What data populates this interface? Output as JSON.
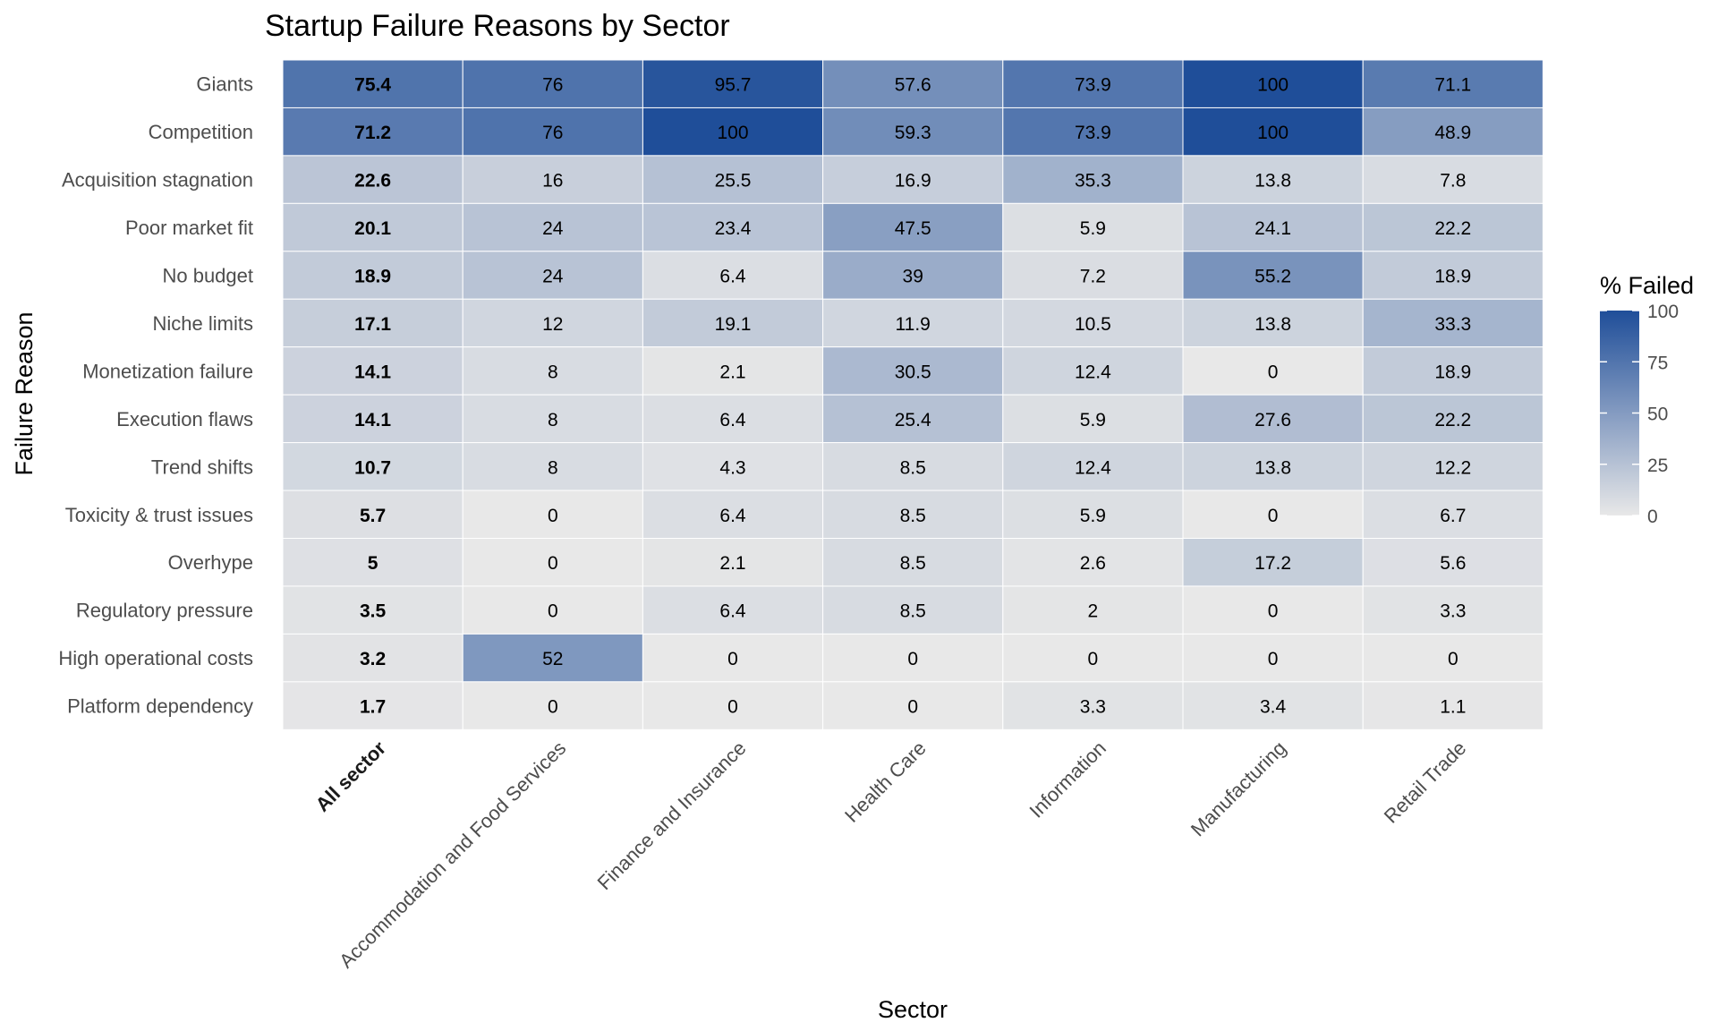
{
  "chart_data": {
    "type": "heatmap",
    "title": "Startup Failure Reasons by Sector",
    "xlabel": "Sector",
    "ylabel": "Failure Reason",
    "legend_title": "% Failed",
    "legend_ticks": [
      0,
      25,
      50,
      75,
      100
    ],
    "color_range": [
      0,
      100
    ],
    "color_low": "#e8e8e8",
    "color_high": "#1f4e99",
    "bold_column": "All sector",
    "x_categories": [
      "All sector",
      "Accommodation and Food Services",
      "Finance and Insurance",
      "Health Care",
      "Information",
      "Manufacturing",
      "Retail Trade"
    ],
    "y_categories": [
      "Giants",
      "Competition",
      "Acquisition stagnation",
      "Poor market fit",
      "No budget",
      "Niche limits",
      "Monetization failure",
      "Execution flaws",
      "Trend shifts",
      "Toxicity & trust issues",
      "Overhype",
      "Regulatory pressure",
      "High operational costs",
      "Platform dependency"
    ],
    "values": [
      [
        75.4,
        76,
        95.7,
        57.6,
        73.9,
        100,
        71.1
      ],
      [
        71.2,
        76,
        100,
        59.3,
        73.9,
        100,
        48.9
      ],
      [
        22.6,
        16,
        25.5,
        16.9,
        35.3,
        13.8,
        7.8
      ],
      [
        20.1,
        24,
        23.4,
        47.5,
        5.9,
        24.1,
        22.2
      ],
      [
        18.9,
        24,
        6.4,
        39,
        7.2,
        55.2,
        18.9
      ],
      [
        17.1,
        12,
        19.1,
        11.9,
        10.5,
        13.8,
        33.3
      ],
      [
        14.1,
        8,
        2.1,
        30.5,
        12.4,
        0,
        18.9
      ],
      [
        14.1,
        8,
        6.4,
        25.4,
        5.9,
        27.6,
        22.2
      ],
      [
        10.7,
        8,
        4.3,
        8.5,
        12.4,
        13.8,
        12.2
      ],
      [
        5.7,
        0,
        6.4,
        8.5,
        5.9,
        0,
        6.7
      ],
      [
        5,
        0,
        2.1,
        8.5,
        2.6,
        17.2,
        5.6
      ],
      [
        3.5,
        0,
        6.4,
        8.5,
        2,
        0,
        3.3
      ],
      [
        3.2,
        52,
        0,
        0,
        0,
        0,
        0
      ],
      [
        1.7,
        0,
        0,
        0,
        3.3,
        3.4,
        1.1
      ]
    ]
  }
}
